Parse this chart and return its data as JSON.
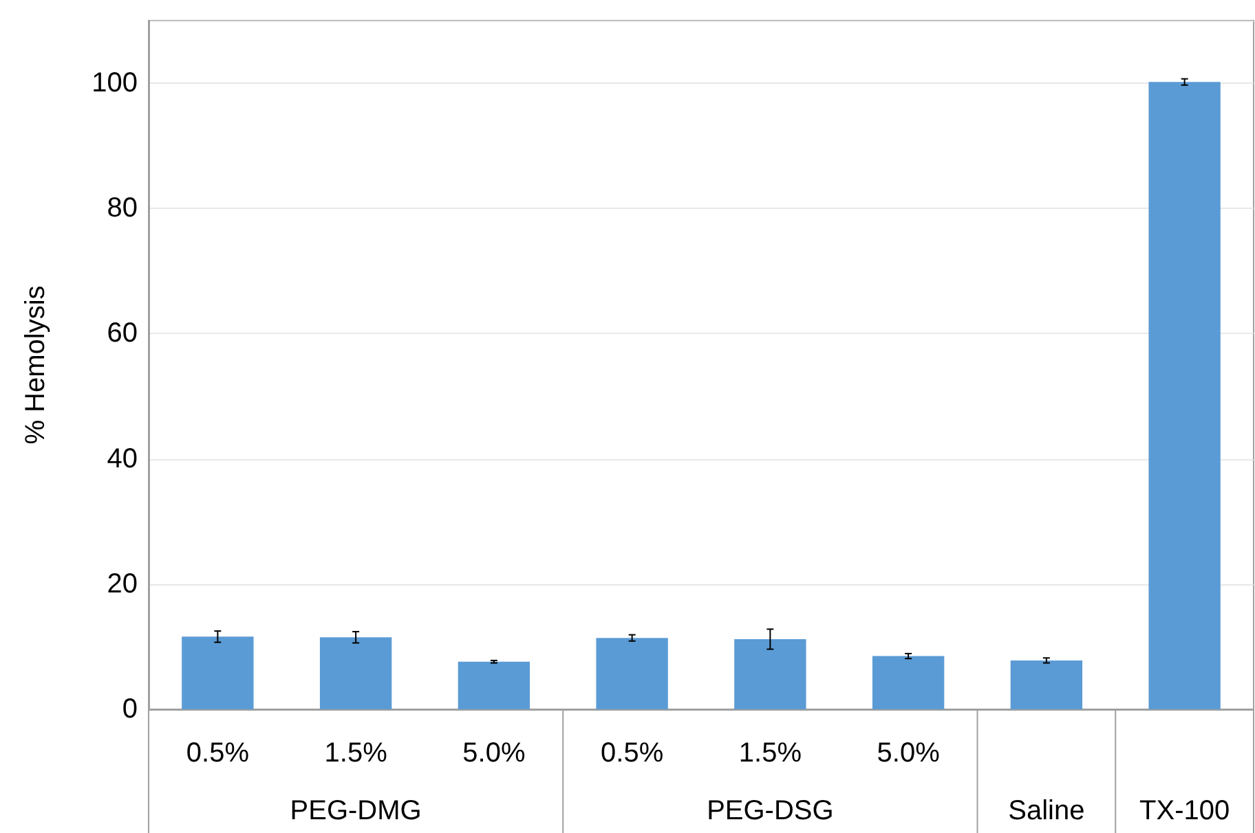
{
  "chart_data": {
    "type": "bar",
    "ylabel": "% Hemolysis",
    "categories": [
      "0.5%",
      "1.5%",
      "5.0%",
      "0.5%",
      "1.5%",
      "5.0%",
      null,
      null
    ],
    "values": [
      11.6,
      11.5,
      7.6,
      11.4,
      11.2,
      8.5,
      7.8,
      100.2
    ],
    "errors": [
      0.9,
      0.9,
      0.2,
      0.5,
      1.6,
      0.4,
      0.4,
      0.5
    ],
    "color": "#5b9bd5",
    "annotations": [
      "PEG-DMG",
      "PEG-DSG",
      "Saline",
      "TX-100"
    ],
    "ylim": [
      0,
      110
    ],
    "yticks": [
      0,
      20,
      40,
      60,
      80,
      100
    ],
    "grid": "y"
  }
}
